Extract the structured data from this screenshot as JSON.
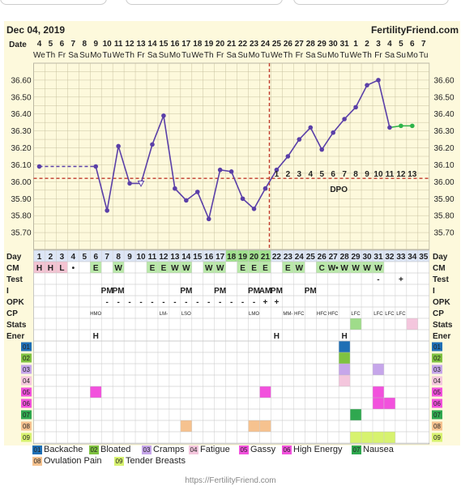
{
  "header": {
    "date": "Dec 04, 2019",
    "site": "FertilityFriend.com"
  },
  "footer": {
    "url": "https://FertilityFriend.com"
  },
  "calendar": {
    "dates": [
      "4",
      "5",
      "6",
      "7",
      "8",
      "9",
      "10",
      "11",
      "12",
      "13",
      "14",
      "15",
      "16",
      "17",
      "18",
      "19",
      "20",
      "21",
      "22",
      "23",
      "24",
      "25",
      "26",
      "27",
      "28",
      "29",
      "30",
      "31",
      "1",
      "2",
      "3",
      "4",
      "5",
      "6",
      "7"
    ],
    "weekdays": [
      "We",
      "Th",
      "Fr",
      "Sa",
      "Su",
      "Mo",
      "Tu",
      "We",
      "Th",
      "Fr",
      "Sa",
      "Su",
      "Mo",
      "Tu",
      "We",
      "Th",
      "Fr",
      "Sa",
      "Su",
      "Mo",
      "Tu",
      "We",
      "Th",
      "Fr",
      "Sa",
      "Su",
      "Mo",
      "Tu",
      "We",
      "Th",
      "Fr",
      "Sa",
      "Su",
      "Mo",
      "Tu"
    ],
    "cycle_days": [
      "1",
      "2",
      "3",
      "4",
      "5",
      "6",
      "7",
      "8",
      "9",
      "10",
      "11",
      "12",
      "13",
      "14",
      "15",
      "16",
      "17",
      "18",
      "19",
      "20",
      "21",
      "22",
      "23",
      "24",
      "25",
      "26",
      "27",
      "28",
      "29",
      "30",
      "31",
      "32",
      "33",
      "34",
      "35"
    ],
    "dpo": [
      "1",
      "2",
      "3",
      "4",
      "5",
      "6",
      "7",
      "8",
      "9",
      "10",
      "11",
      "12",
      "13"
    ],
    "dpo_label": "DPO"
  },
  "row_labels": {
    "date": "Date",
    "day": "Day",
    "cm": "CM",
    "test": "Test",
    "i": "I",
    "opk": "OPK",
    "cp": "CP",
    "stats": "Stats",
    "energy": "Ener"
  },
  "rows": {
    "cm": [
      "H",
      "H",
      "L",
      "•",
      "",
      "E",
      "",
      "W",
      "",
      "",
      "E",
      "E",
      "W",
      "W",
      "",
      "W",
      "W",
      "",
      "E",
      "E",
      "E",
      "",
      "E",
      "W",
      "",
      "C",
      "W•",
      "W",
      "W",
      "W",
      "W",
      "",
      "",
      "",
      ""
    ],
    "test": [
      "",
      "",
      "",
      "",
      "",
      "",
      "",
      "",
      "",
      "",
      "",
      "",
      "",
      "",
      "",
      "",
      "",
      "",
      "",
      "",
      "",
      "",
      "",
      "",
      "",
      "",
      "",
      "",
      "",
      "",
      "-",
      "",
      "+",
      "",
      ""
    ],
    "i": [
      "",
      "",
      "",
      "",
      "",
      "",
      "PM",
      "PM",
      "",
      "",
      "",
      "",
      "",
      "PM",
      "",
      "",
      "PM",
      "",
      "",
      "PM",
      "AM",
      "PM",
      "",
      "",
      "PM",
      "",
      "",
      "",
      "",
      "",
      "",
      "",
      "",
      "",
      ""
    ],
    "opk": [
      "",
      "",
      "",
      "",
      "",
      "",
      "-",
      "-",
      "-",
      "-",
      "-",
      "-",
      "-",
      "-",
      "-",
      "-",
      "-",
      "-",
      "-",
      "-",
      "+",
      "+",
      "",
      "",
      "",
      "",
      "",
      "",
      "",
      "",
      "",
      "",
      "",
      "",
      ""
    ],
    "cp": [
      "",
      "",
      "",
      "",
      "",
      "HMO",
      "",
      "",
      "",
      "",
      "",
      "LM-",
      "",
      "LSO",
      "",
      "",
      "",
      "",
      "",
      "LMO",
      "",
      "",
      "MM-",
      "HFC",
      "",
      "HFC",
      "HFC",
      "",
      "LFC",
      "",
      "LFC",
      "LFC",
      "LFC",
      "",
      ""
    ],
    "energy": [
      "",
      "",
      "",
      "",
      "",
      "H",
      "",
      "",
      "",
      "",
      "",
      "",
      "",
      "",
      "",
      "",
      "",
      "",
      "",
      "",
      "",
      "H",
      "",
      "",
      "",
      "",
      "",
      "H",
      "",
      "",
      "",
      "",
      "",
      "",
      ""
    ]
  },
  "symptoms": [
    {
      "code": "01",
      "name": "Backache",
      "color": "#1f6fb5"
    },
    {
      "code": "02",
      "name": "Bloated",
      "color": "#7fc241"
    },
    {
      "code": "03",
      "name": "Cramps",
      "color": "#c6a6ea"
    },
    {
      "code": "04",
      "name": "Fatigue",
      "color": "#f4c6dd"
    },
    {
      "code": "05",
      "name": "Gassy",
      "color": "#f251dd"
    },
    {
      "code": "06",
      "name": "High Energy",
      "color": "#f251dd"
    },
    {
      "code": "07",
      "name": "Nausea",
      "color": "#2fa84f"
    },
    {
      "code": "08",
      "name": "Ovulation Pain",
      "color": "#f6c28f"
    },
    {
      "code": "09",
      "name": "Tender Breasts",
      "color": "#d7f26f"
    }
  ],
  "chart_data": {
    "type": "line",
    "title": "",
    "ylim": [
      35.6,
      36.7
    ],
    "yticks": [
      "36.60",
      "36.50",
      "36.40",
      "36.30",
      "36.20",
      "36.10",
      "36.00",
      "35.90",
      "35.80",
      "35.70"
    ],
    "x": [
      1,
      2,
      3,
      4,
      5,
      6,
      7,
      8,
      9,
      10,
      11,
      12,
      13,
      14,
      15,
      16,
      17,
      18,
      19,
      20,
      21,
      22,
      23,
      24,
      25,
      26,
      27,
      28,
      29,
      30,
      31,
      32,
      33,
      34,
      35
    ],
    "series": [
      {
        "values": [
          36.09,
          null,
          null,
          null,
          null,
          36.09,
          35.83,
          36.21,
          35.99,
          35.99,
          36.22,
          36.39,
          35.96,
          35.89,
          35.94,
          35.78,
          36.07,
          36.06,
          35.9,
          35.84,
          35.96,
          36.07,
          36.15,
          36.25,
          36.32,
          36.19,
          36.29,
          36.37,
          36.44,
          36.57,
          36.6,
          36.32,
          36.33,
          36.33,
          null
        ]
      }
    ],
    "coverline": 36.02,
    "ovulation_day": 21,
    "open_point_day": 10,
    "gap": {
      "from": 1,
      "to": 6
    },
    "projected_from_day": 32,
    "colors": {
      "line": "#5a3fa8",
      "projected": "#2fb34a",
      "coverline": "#c0392b"
    },
    "markings": {
      "period_days": [
        1,
        2,
        3
      ],
      "fertile_days": [
        18,
        19,
        20,
        21
      ]
    },
    "stats_marks": [
      {
        "day": 29,
        "color": "#9fdc8a"
      },
      {
        "day": 34,
        "color": "#f4c6dd"
      }
    ],
    "symptom_marks": {
      "01": [
        28
      ],
      "02": [
        28
      ],
      "03": [
        28,
        31
      ],
      "04": [
        28
      ],
      "05": [
        6,
        21,
        31
      ],
      "06": [
        31,
        32
      ],
      "07": [
        29
      ],
      "08": [
        14,
        20,
        21
      ],
      "09": [
        29,
        30,
        31,
        32
      ]
    }
  }
}
